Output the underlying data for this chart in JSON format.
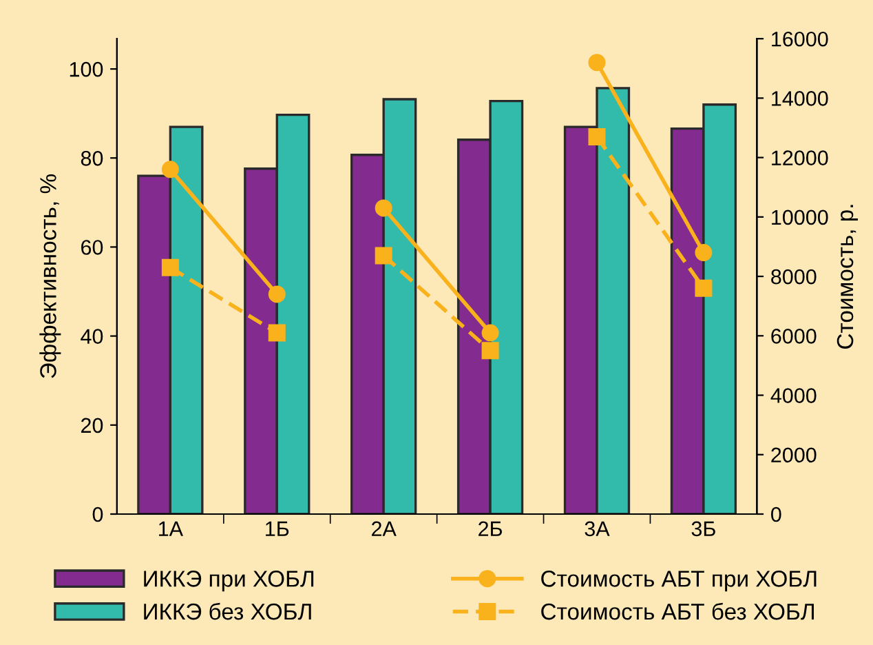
{
  "chart_data": {
    "type": "bar",
    "ylabel": "Эффективность, %",
    "y2label": "Стоимость, р.",
    "categories": [
      "1А",
      "1Б",
      "2А",
      "2Б",
      "3А",
      "3Б"
    ],
    "series": [
      {
        "name": "ИККЭ при ХОБЛ",
        "color": "#832b8e",
        "values": [
          76,
          77.6,
          80.7,
          84.1,
          87,
          86.6
        ]
      },
      {
        "name": "ИККЭ без ХОБЛ",
        "color": "#32bbaa",
        "values": [
          87,
          89.7,
          93.2,
          92.8,
          95.7,
          92
        ]
      },
      {
        "name": "Стоимость АБТ при ХОБЛ",
        "type": "line",
        "axis": "y2",
        "color": "#f9b21c",
        "marker": "circle",
        "line_style": "solid",
        "values": [
          11600,
          7400,
          null,
          null,
          null,
          null
        ]
      },
      {
        "type": "line",
        "axis": "y2",
        "color": "#f9b21c",
        "marker": "circle",
        "line_style": "solid",
        "values": [
          null,
          null,
          10300,
          6100,
          null,
          null
        ]
      },
      {
        "type": "line",
        "axis": "y2",
        "color": "#f9b21c",
        "marker": "circle",
        "line_style": "solid",
        "values": [
          null,
          null,
          null,
          null,
          15200,
          8800
        ]
      },
      {
        "name": "Стоимость АБТ без ХОБЛ",
        "type": "line",
        "axis": "y2",
        "color": "#f9b21c",
        "marker": "square",
        "line_style": "dashed",
        "values": [
          8300,
          6100,
          null,
          null,
          null,
          null
        ]
      },
      {
        "type": "line",
        "axis": "y2",
        "color": "#f9b21c",
        "marker": "square",
        "line_style": "dashed",
        "values": [
          null,
          null,
          8700,
          5500,
          null,
          null
        ]
      },
      {
        "type": "line",
        "axis": "y2",
        "color": "#f9b21c",
        "marker": "square",
        "line_style": "dashed",
        "values": [
          null,
          null,
          null,
          null,
          12700,
          7600
        ]
      }
    ],
    "ylim": [
      0,
      106.8
    ],
    "yticks": [
      0,
      20,
      40,
      60,
      80,
      100
    ],
    "y2lim": [
      0,
      16000
    ],
    "y2ticks": [
      0,
      2000,
      4000,
      6000,
      8000,
      10000,
      12000,
      14000,
      16000
    ],
    "grid": false,
    "legend": "bottom"
  }
}
